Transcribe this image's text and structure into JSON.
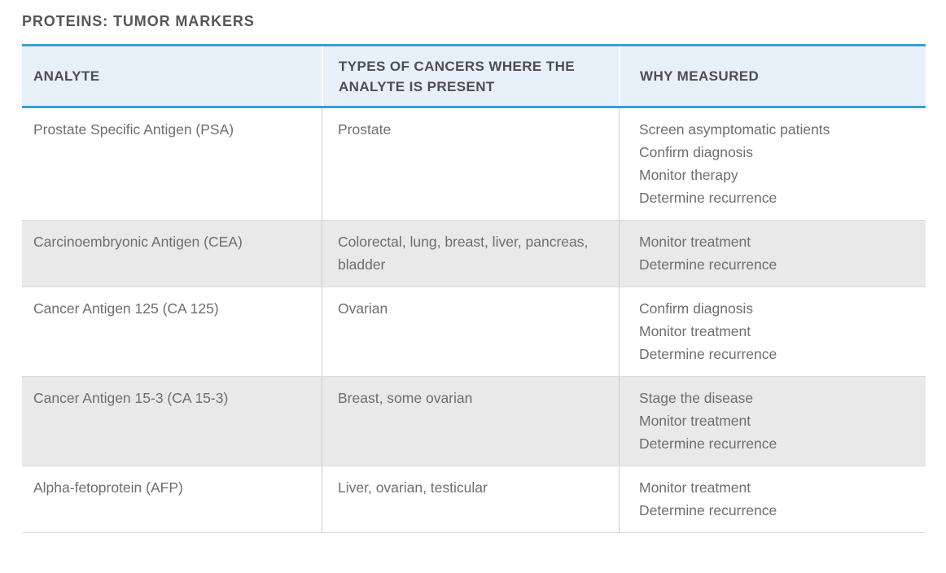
{
  "page": {
    "title": "PROTEINS: TUMOR MARKERS"
  },
  "table": {
    "headers": [
      {
        "label": "ANALYTE"
      },
      {
        "label": "TYPES OF CANCERS WHERE THE ANALYTE IS PRESENT"
      },
      {
        "label": "WHY MEASURED"
      }
    ],
    "rows": [
      {
        "analyte": "Prostate Specific Antigen (PSA)",
        "cancers": "Prostate",
        "why": [
          "Screen asymptomatic patients",
          "Confirm diagnosis",
          "Monitor therapy",
          "Determine recurrence"
        ]
      },
      {
        "analyte": "Carcinoembryonic Antigen (CEA)",
        "cancers": "Colorectal, lung, breast, liver, pancreas, bladder",
        "why": [
          "Monitor treatment",
          "Determine recurrence"
        ]
      },
      {
        "analyte": "Cancer Antigen 125 (CA 125)",
        "cancers": "Ovarian",
        "why": [
          "Confirm diagnosis",
          "Monitor treatment",
          "Determine recurrence"
        ]
      },
      {
        "analyte": "Cancer Antigen 15-3 (CA 15-3)",
        "cancers": "Breast, some ovarian",
        "why": [
          "Stage the disease",
          "Monitor treatment",
          "Determine recurrence"
        ]
      },
      {
        "analyte": "Alpha-fetoprotein (AFP)",
        "cancers": "Liver, ovarian, testicular",
        "why": [
          "Monitor treatment",
          "Determine recurrence"
        ]
      }
    ],
    "colors": {
      "accent_blue": "#38a2d3",
      "header_bg": "#e7eff8",
      "alt_row_bg": "#e9e9e9",
      "divider_gray": "#cccccc",
      "body_text": "#6d6e71",
      "header_text": "#4d4e52"
    }
  }
}
